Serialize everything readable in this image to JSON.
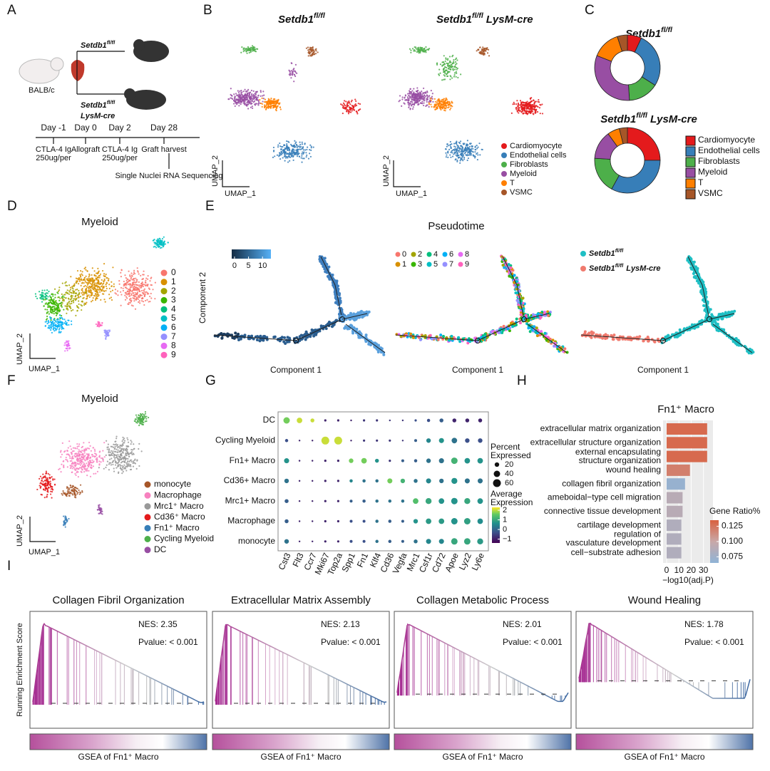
{
  "panel_labels": [
    "A",
    "B",
    "C",
    "D",
    "E",
    "F",
    "G",
    "H",
    "I"
  ],
  "genotypes": [
    {
      "base": "Setdb1",
      "sup": "fl/fl"
    },
    {
      "base": "Setdb1",
      "sup": "fl/fl",
      "suffix": "LysM-cre"
    }
  ],
  "a": {
    "strain": "BALB/c",
    "days": [
      "Day -1",
      "Day 0",
      "Day 2",
      "Day 28"
    ],
    "notes": [
      [
        "CTLA-4 Ig",
        "250ug/per"
      ],
      [
        "Allograft"
      ],
      [
        "CTLA-4 Ig",
        "250ug/per"
      ],
      [
        "Graft harvest"
      ]
    ],
    "sequencing": "Single Nuclei RNA Sequencing"
  },
  "b": {
    "umap_x": "UMAP_1",
    "umap_y": "UMAP_2",
    "cell_types": [
      {
        "name": "Cardiomyocyte",
        "color": "#e41a1c"
      },
      {
        "name": "Endothelial cells",
        "color": "#377eb8"
      },
      {
        "name": "Fibroblasts",
        "color": "#4daf4a"
      },
      {
        "name": "Myeloid",
        "color": "#984ea3"
      },
      {
        "name": "T",
        "color": "#ff7f00"
      },
      {
        "name": "VSMC",
        "color": "#a65628"
      }
    ]
  },
  "c": {
    "donuts": [
      {
        "values": [
          7,
          27,
          15,
          32,
          14,
          5
        ]
      },
      {
        "values": [
          25,
          33,
          18,
          14,
          6,
          4
        ]
      }
    ]
  },
  "d": {
    "title": "Myeloid",
    "clusters": [
      {
        "name": "0",
        "color": "#F8766D"
      },
      {
        "name": "1",
        "color": "#D89000"
      },
      {
        "name": "2",
        "color": "#A3A500"
      },
      {
        "name": "3",
        "color": "#39B600"
      },
      {
        "name": "4",
        "color": "#00BF7D"
      },
      {
        "name": "5",
        "color": "#00BFC4"
      },
      {
        "name": "6",
        "color": "#00B0F6"
      },
      {
        "name": "7",
        "color": "#9590FF"
      },
      {
        "name": "8",
        "color": "#E76BF3"
      },
      {
        "name": "9",
        "color": "#FF62BC"
      }
    ]
  },
  "e": {
    "title": "Pseudotime",
    "x_label": "Component 1",
    "y_label": "Component 2",
    "colorbar_lim": [
      -1,
      13
    ],
    "colorbar_ticks": [
      0,
      5,
      10
    ]
  },
  "f": {
    "title": "Myeloid",
    "types": [
      {
        "name": "monocyte",
        "color": "#a65628"
      },
      {
        "name": "Macrophage",
        "color": "#f781bf"
      },
      {
        "name": "Mrc1⁺ Macro",
        "color": "#999999"
      },
      {
        "name": "Cd36⁺ Macro",
        "color": "#e41a1c"
      },
      {
        "name": "Fn1⁺ Macro",
        "color": "#377eb8"
      },
      {
        "name": "Cycling Myeloid",
        "color": "#4daf4a"
      },
      {
        "name": "DC",
        "color": "#984ea3"
      }
    ]
  },
  "g": {
    "rows": [
      "DC",
      "Cycling Myeloid",
      "Fn1+ Macro",
      "Cd36+ Macro",
      "Mrc1+ Macro",
      "Macrophage",
      "monocyte"
    ],
    "genes": [
      "Cst3",
      "Flt3",
      "Ccr7",
      "Mki67",
      "Top2a",
      "Spp1",
      "Fn1",
      "Klf4",
      "Cd36",
      "Vegfa",
      "Mrc1",
      "Csf1r",
      "Cd72",
      "Apoe",
      "Lyz2",
      "Ly6e"
    ],
    "pct": [
      [
        40,
        30,
        15,
        5,
        5,
        3,
        5,
        5,
        3,
        3,
        5,
        10,
        15,
        15,
        15,
        15
      ],
      [
        10,
        3,
        3,
        60,
        60,
        3,
        5,
        5,
        5,
        3,
        8,
        20,
        25,
        30,
        20,
        20
      ],
      [
        25,
        3,
        3,
        5,
        5,
        20,
        30,
        15,
        5,
        8,
        10,
        20,
        25,
        40,
        30,
        30
      ],
      [
        20,
        3,
        3,
        5,
        5,
        10,
        10,
        10,
        25,
        20,
        15,
        25,
        20,
        35,
        25,
        25
      ],
      [
        15,
        3,
        3,
        5,
        5,
        8,
        10,
        10,
        10,
        10,
        30,
        35,
        30,
        40,
        35,
        30
      ],
      [
        15,
        3,
        3,
        5,
        5,
        8,
        8,
        10,
        10,
        8,
        20,
        30,
        30,
        40,
        40,
        30
      ],
      [
        20,
        3,
        3,
        5,
        5,
        8,
        8,
        10,
        10,
        8,
        15,
        25,
        25,
        40,
        40,
        35
      ]
    ],
    "expr": [
      [
        1.5,
        2,
        2,
        -1,
        -1,
        -1,
        -0.8,
        -0.8,
        -0.8,
        -0.8,
        -0.5,
        -0.5,
        -0.3,
        -1,
        -1,
        -1
      ],
      [
        -0.5,
        -1,
        -1,
        2,
        2,
        -1,
        -0.8,
        -0.8,
        -0.8,
        -0.8,
        -0.3,
        0.3,
        0.5,
        0,
        -0.5,
        -0.5
      ],
      [
        0.5,
        -1,
        -1,
        -1,
        -1,
        1.5,
        1.5,
        0.5,
        -0.8,
        -0.3,
        -0.3,
        0,
        0,
        1,
        0.5,
        0.5
      ],
      [
        0,
        -1,
        -1,
        -1,
        -1,
        0.3,
        0,
        0,
        1.5,
        1,
        0,
        0.3,
        0,
        0.5,
        0,
        0
      ],
      [
        -0.3,
        -1,
        -1,
        -1,
        -1,
        -0.3,
        -0.3,
        0,
        0,
        0,
        1.2,
        0.8,
        0.5,
        0.5,
        0.8,
        0.5
      ],
      [
        -0.3,
        -1,
        -1,
        -1,
        -1,
        -0.5,
        -0.5,
        0,
        -0.3,
        -0.3,
        0.5,
        0.6,
        0.6,
        0.5,
        0.7,
        0.4
      ],
      [
        0,
        -1,
        -1,
        -1,
        -1,
        -0.5,
        -0.5,
        0,
        -0.3,
        -0.3,
        0,
        0.3,
        0.3,
        0.8,
        0.8,
        0.6
      ]
    ],
    "size_title": [
      "Percent",
      "Expressed"
    ],
    "size_ticks": [
      20,
      40,
      60
    ],
    "color_title": [
      "Average",
      "Expression"
    ],
    "color_lim": [
      -1.4,
      2.3
    ],
    "color_ticks": [
      2,
      1,
      0,
      {
        "value": -1,
        "label": "−1"
      }
    ]
  },
  "h": {
    "title": "Fn1⁺ Macro",
    "terms": [
      {
        "label": [
          "extracellular matrix organization"
        ],
        "highlight": true,
        "value": 33,
        "ratio": 0.13
      },
      {
        "label": [
          "extracellular structure organization"
        ],
        "highlight": true,
        "value": 33,
        "ratio": 0.13
      },
      {
        "label": [
          "external encapsulating",
          "structure organization"
        ],
        "highlight": false,
        "value": 33,
        "ratio": 0.13
      },
      {
        "label": [
          "wound healing"
        ],
        "highlight": true,
        "value": 19,
        "ratio": 0.12
      },
      {
        "label": [
          "collagen fibril organization"
        ],
        "highlight": true,
        "value": 15,
        "ratio": 0.07
      },
      {
        "label": [
          "ameboidal−type cell migration"
        ],
        "highlight": false,
        "value": 13,
        "ratio": 0.09
      },
      {
        "label": [
          "connective tissue development"
        ],
        "highlight": false,
        "value": 13,
        "ratio": 0.09
      },
      {
        "label": [
          "cartilage development"
        ],
        "highlight": false,
        "value": 12,
        "ratio": 0.085
      },
      {
        "label": [
          "regulation of",
          "vasculature development"
        ],
        "highlight": false,
        "value": 12,
        "ratio": 0.085
      },
      {
        "label": [
          "cell−substrate adhesion"
        ],
        "highlight": false,
        "value": 12,
        "ratio": 0.085
      }
    ],
    "xlim": [
      0,
      36
    ],
    "xticks": [
      0,
      10,
      20,
      30
    ],
    "x_label": "−log10(adj.P)",
    "legend_title": "Gene Ratio%",
    "ratio_lim": [
      0.065,
      0.135
    ],
    "ratio_ticks": [
      0.125,
      {
        "value": 0.1,
        "label": "0.100"
      },
      0.075
    ]
  },
  "i": {
    "y_label": "Running Enrichment Score",
    "x_label": "GSEA of Fn1⁺ Macro",
    "panels": [
      {
        "title": "Collagen Fibril Organization",
        "nes": "NES: 2.35",
        "pvalue": "Pvalue: < 0.001"
      },
      {
        "title": "Extracellular Matrix Assembly",
        "nes": "NES: 2.13",
        "pvalue": "Pvalue: < 0.001"
      },
      {
        "title": "Collagen Metabolic Process",
        "nes": "NES: 2.01",
        "pvalue": "Pvalue: < 0.001"
      },
      {
        "title": "Wound Healing",
        "nes": "NES: 1.78",
        "pvalue": "Pvalue: < 0.001"
      }
    ]
  }
}
